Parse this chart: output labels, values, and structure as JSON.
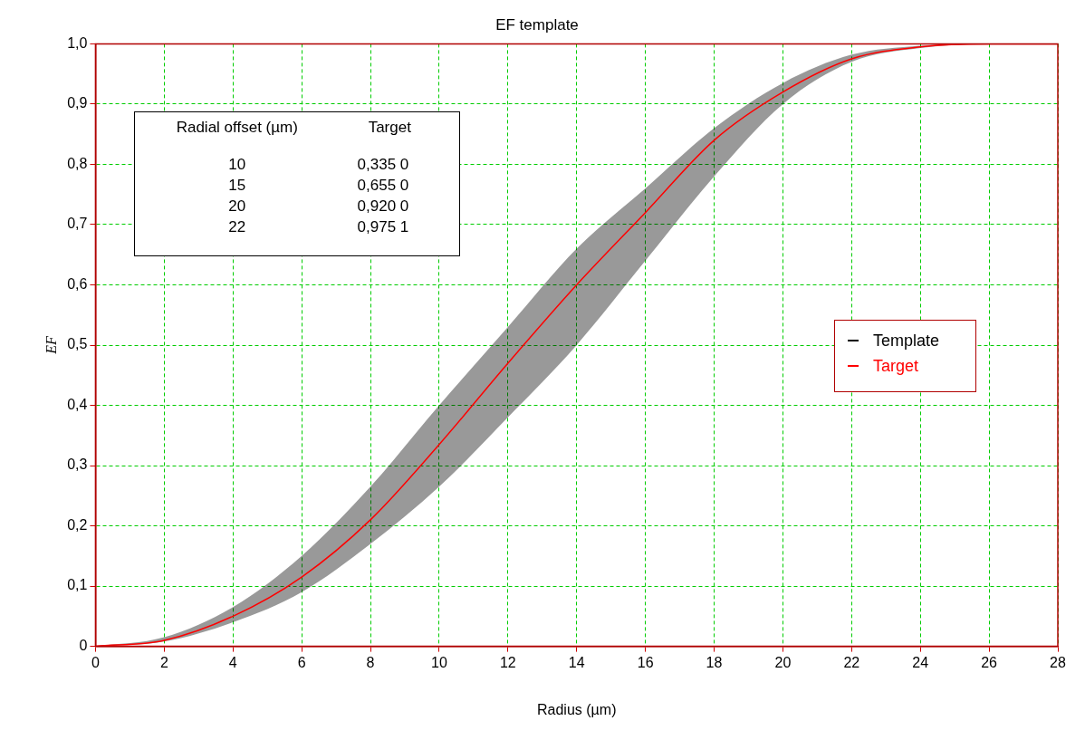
{
  "chart_data": {
    "type": "line",
    "title": "EF template",
    "xlabel": "Radius (µm)",
    "ylabel": "EF",
    "x": [
      0,
      2,
      4,
      6,
      8,
      10,
      12,
      14,
      16,
      18,
      20,
      22,
      24,
      26,
      28
    ],
    "series": [
      {
        "name": "Template",
        "color": "#000000",
        "values": [
          null,
          null,
          null,
          null,
          null,
          null,
          null,
          null,
          null,
          null,
          null,
          null,
          null,
          null,
          null
        ],
        "lower": [
          0,
          0.008,
          0.04,
          0.09,
          0.17,
          0.265,
          0.38,
          0.5,
          0.64,
          0.78,
          0.9,
          0.97,
          0.993,
          1,
          1
        ],
        "upper": [
          0,
          0.015,
          0.065,
          0.15,
          0.265,
          0.4,
          0.53,
          0.66,
          0.76,
          0.86,
          0.935,
          0.982,
          0.997,
          1,
          1
        ]
      },
      {
        "name": "Target",
        "color": "#ff0000",
        "values": [
          0,
          0.01,
          0.05,
          0.115,
          0.21,
          0.335,
          0.47,
          0.6,
          0.72,
          0.84,
          0.92,
          0.975,
          0.995,
          1,
          1
        ]
      }
    ],
    "xlim": [
      0,
      28
    ],
    "xticks": [
      0,
      2,
      4,
      6,
      8,
      10,
      12,
      14,
      16,
      18,
      20,
      22,
      24,
      26,
      28
    ],
    "ylim": [
      0,
      1
    ],
    "yticks": [
      {
        "value": 0,
        "label": "0"
      },
      {
        "value": 0.1,
        "label": "0,1"
      },
      {
        "value": 0.2,
        "label": "0,2"
      },
      {
        "value": 0.3,
        "label": "0,3"
      },
      {
        "value": 0.4,
        "label": "0,4"
      },
      {
        "value": 0.5,
        "label": "0,5"
      },
      {
        "value": 0.6,
        "label": "0,6"
      },
      {
        "value": 0.7,
        "label": "0,7"
      },
      {
        "value": 0.8,
        "label": "0,8"
      },
      {
        "value": 0.9,
        "label": "0,9"
      },
      {
        "value": 1,
        "label": "1,0"
      }
    ],
    "grid": true,
    "legend": "right",
    "marker": "none",
    "line_style": "solid",
    "annotations": [
      "Radial offset  (µm)",
      "Target",
      "10",
      "0,335 0",
      "15",
      "0,655 0",
      "20",
      "0,920 0",
      "22",
      "0,975 1"
    ]
  }
}
